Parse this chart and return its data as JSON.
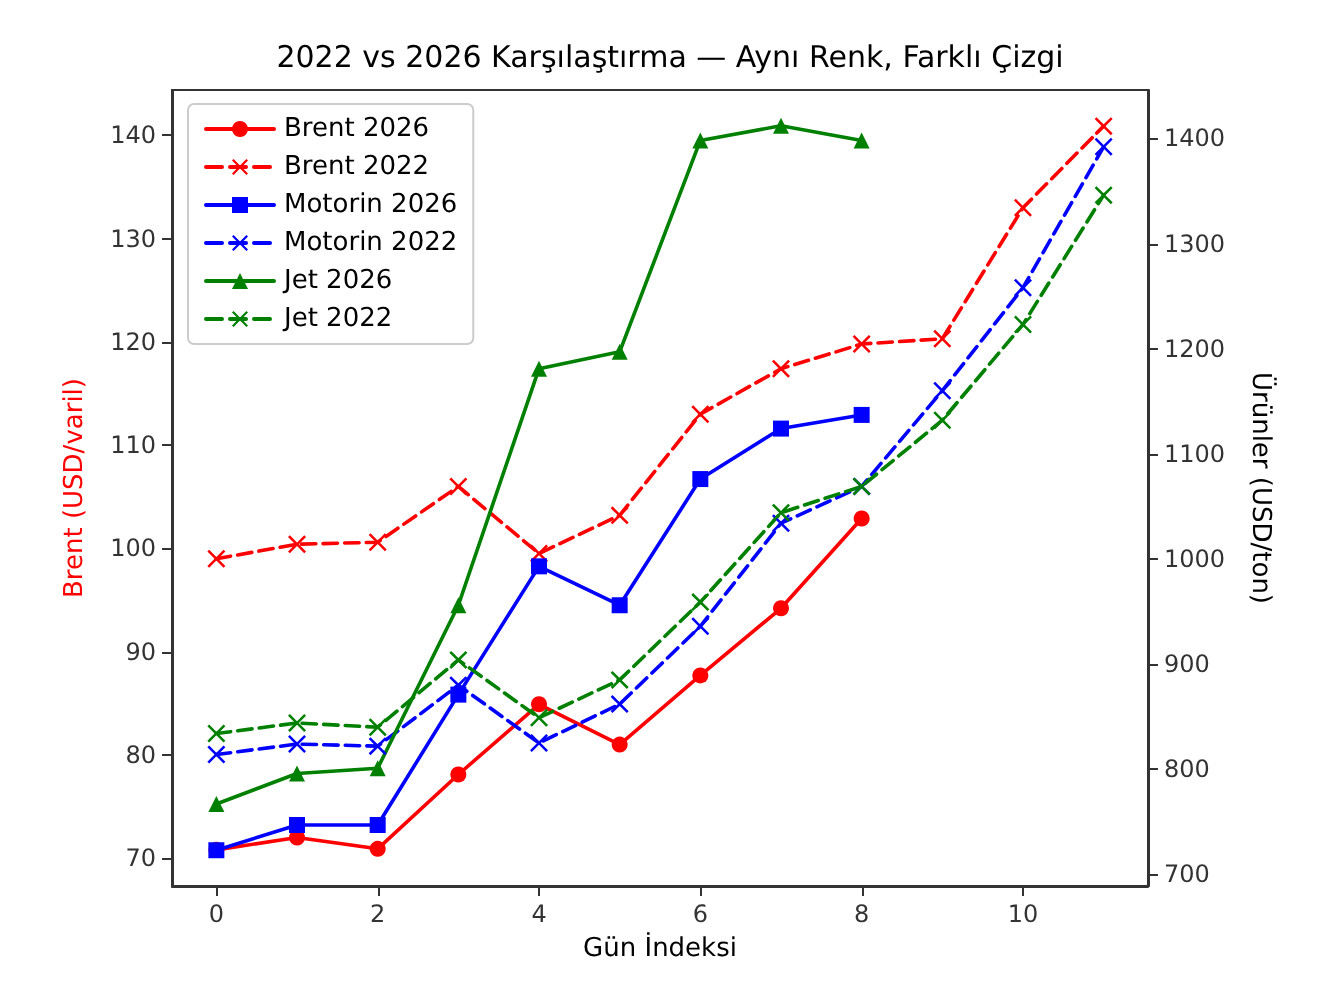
{
  "chart_data": {
    "type": "line",
    "title": "2022 vs 2026 Karşılaştırma — Aynı Renk, Farklı Çizgi",
    "xlabel": "Gün İndeksi",
    "ylabel": "Brent (USD/varil)",
    "y2label": "Ürünler (USD/ton)",
    "x": [
      0,
      1,
      2,
      3,
      4,
      5,
      6,
      7,
      8,
      9,
      10,
      11
    ],
    "xlim": [
      -0.55,
      11.55
    ],
    "xticks": [
      0,
      2,
      4,
      6,
      8,
      10
    ],
    "ylim": [
      67.3,
      144.4
    ],
    "yticks": [
      70,
      80,
      90,
      100,
      110,
      120,
      130,
      140
    ],
    "y2lim": [
      689,
      1446
    ],
    "y2ticks": [
      700,
      800,
      900,
      1000,
      1100,
      1200,
      1300,
      1400
    ],
    "grid": false,
    "legend": "top left",
    "series": [
      {
        "name": "Brent 2026",
        "color": "#ff0000",
        "marker": "circle",
        "line_style": "solid",
        "x": [
          0,
          1,
          2,
          3,
          4,
          5,
          6,
          7,
          8
        ],
        "values": [
          70.8,
          72.0,
          70.9,
          78.1,
          84.9,
          81.0,
          87.7,
          94.2,
          102.9
        ]
      },
      {
        "name": "Brent 2022",
        "color": "#ff0000",
        "marker": "cross",
        "line_style": "dashed",
        "values": [
          99.0,
          100.4,
          100.6,
          106.0,
          99.5,
          103.2,
          113.0,
          117.4,
          119.8,
          120.3,
          133.0,
          140.9
        ]
      },
      {
        "name": "Motorin 2026",
        "color": "#0000ff",
        "marker": "square",
        "line_style": "solid",
        "axis": "y2",
        "x": [
          0,
          1,
          2,
          3,
          4,
          5,
          6,
          7,
          8
        ],
        "values": [
          723,
          747,
          747,
          871,
          993,
          956,
          1076,
          1124,
          1137
        ]
      },
      {
        "name": "Motorin 2022",
        "color": "#0000ff",
        "marker": "cross",
        "line_style": "dashed",
        "axis": "y2",
        "values": [
          814,
          824,
          822,
          880,
          825,
          862,
          936,
          1034,
          1069,
          1160,
          1258,
          1392
        ]
      },
      {
        "name": "Jet 2026",
        "color": "#008000",
        "marker": "triangle",
        "line_style": "solid",
        "axis": "y2",
        "x": [
          0,
          1,
          2,
          3,
          4,
          5,
          6,
          7,
          8
        ],
        "values": [
          767,
          796,
          801,
          956,
          1181,
          1197,
          1398,
          1412,
          1398
        ]
      },
      {
        "name": "Jet 2022",
        "color": "#008000",
        "marker": "cross",
        "line_style": "dashed",
        "axis": "y2",
        "values": [
          834,
          844,
          840,
          904,
          849,
          885,
          959,
          1044,
          1069,
          1132,
          1223,
          1346
        ]
      }
    ]
  }
}
